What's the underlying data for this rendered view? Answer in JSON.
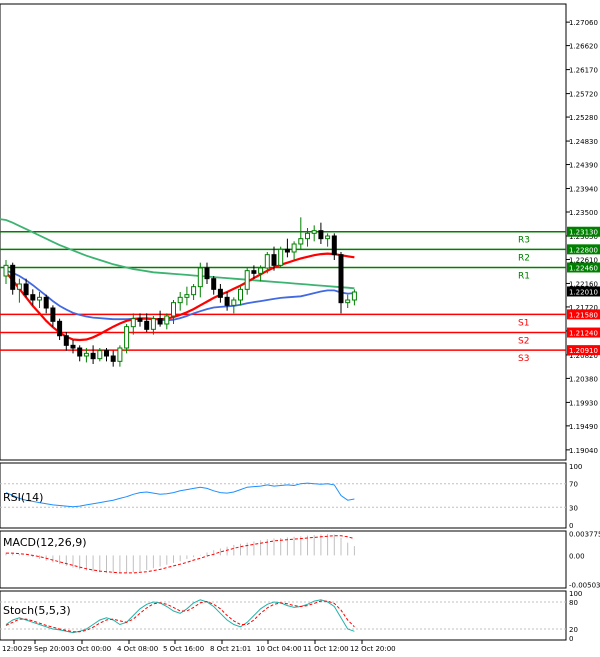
{
  "chart_data": {
    "type": "candlestick",
    "main": {
      "price_axis": [
        "1.27060",
        "1.26620",
        "1.26170",
        "1.25720",
        "1.25280",
        "1.24830",
        "1.24390",
        "1.23940",
        "1.23500",
        "1.23050",
        "1.22610",
        "1.22160",
        "1.21720",
        "1.21270",
        "1.20820",
        "1.20380",
        "1.19930",
        "1.19490",
        "1.19040"
      ],
      "ylim": [
        1.1885,
        1.274
      ],
      "levels": [
        {
          "name": "R3",
          "price": 1.2313,
          "tag": "1.23130",
          "kind": "resistance"
        },
        {
          "name": "R2",
          "price": 1.228,
          "tag": "1.22800",
          "kind": "resistance"
        },
        {
          "name": "R1",
          "price": 1.2246,
          "tag": "1.22460",
          "kind": "resistance"
        },
        {
          "name": "S1",
          "price": 1.2158,
          "tag": "1.21580",
          "kind": "support"
        },
        {
          "name": "S2",
          "price": 1.2124,
          "tag": "1.21240",
          "kind": "support"
        },
        {
          "name": "S3",
          "price": 1.2091,
          "tag": "1.20910",
          "kind": "support"
        }
      ],
      "current_price": {
        "value": 1.2201,
        "tag": "1.22010"
      },
      "candles": [
        [
          1.223,
          1.226,
          1.2215,
          1.225
        ],
        [
          1.225,
          1.2255,
          1.2195,
          1.2205
        ],
        [
          1.2205,
          1.2225,
          1.218,
          1.2215
        ],
        [
          1.2215,
          1.2225,
          1.219,
          1.2195
        ],
        [
          1.2195,
          1.2205,
          1.2175,
          1.2185
        ],
        [
          1.2185,
          1.22,
          1.217,
          1.219
        ],
        [
          1.219,
          1.2195,
          1.216,
          1.217
        ],
        [
          1.217,
          1.2175,
          1.2135,
          1.2145
        ],
        [
          1.2145,
          1.215,
          1.211,
          1.2118
        ],
        [
          1.2118,
          1.2125,
          1.209,
          1.21
        ],
        [
          1.21,
          1.211,
          1.2085,
          1.2095
        ],
        [
          1.2095,
          1.21,
          1.207,
          1.208
        ],
        [
          1.208,
          1.2095,
          1.2068,
          1.2085
        ],
        [
          1.2085,
          1.21,
          1.2065,
          1.2075
        ],
        [
          1.2075,
          1.2095,
          1.207,
          1.209
        ],
        [
          1.209,
          1.2095,
          1.207,
          1.208
        ],
        [
          1.208,
          1.209,
          1.206,
          1.207
        ],
        [
          1.207,
          1.21,
          1.206,
          1.2095
        ],
        [
          1.2095,
          1.214,
          1.2085,
          1.2135
        ],
        [
          1.2135,
          1.216,
          1.212,
          1.215
        ],
        [
          1.215,
          1.216,
          1.2135,
          1.2145
        ],
        [
          1.2145,
          1.216,
          1.2125,
          1.213
        ],
        [
          1.213,
          1.2155,
          1.212,
          1.215
        ],
        [
          1.215,
          1.2165,
          1.2135,
          1.214
        ],
        [
          1.214,
          1.216,
          1.213,
          1.2155
        ],
        [
          1.2155,
          1.2185,
          1.214,
          1.218
        ],
        [
          1.218,
          1.22,
          1.2165,
          1.219
        ],
        [
          1.219,
          1.221,
          1.2175,
          1.2195
        ],
        [
          1.2195,
          1.2215,
          1.2185,
          1.221
        ],
        [
          1.221,
          1.2255,
          1.219,
          1.2245
        ],
        [
          1.2245,
          1.2255,
          1.2215,
          1.2225
        ],
        [
          1.2225,
          1.223,
          1.2195,
          1.2205
        ],
        [
          1.2205,
          1.2215,
          1.218,
          1.219
        ],
        [
          1.219,
          1.22,
          1.2165,
          1.2175
        ],
        [
          1.2175,
          1.219,
          1.216,
          1.2185
        ],
        [
          1.2185,
          1.221,
          1.2175,
          1.2205
        ],
        [
          1.2205,
          1.2245,
          1.2195,
          1.224
        ],
        [
          1.224,
          1.225,
          1.2225,
          1.2235
        ],
        [
          1.2235,
          1.225,
          1.222,
          1.2245
        ],
        [
          1.2245,
          1.2275,
          1.2235,
          1.227
        ],
        [
          1.227,
          1.2285,
          1.224,
          1.225
        ],
        [
          1.225,
          1.2285,
          1.2245,
          1.228
        ],
        [
          1.228,
          1.23,
          1.2265,
          1.2275
        ],
        [
          1.2275,
          1.2295,
          1.226,
          1.229
        ],
        [
          1.229,
          1.234,
          1.228,
          1.23
        ],
        [
          1.23,
          1.232,
          1.2285,
          1.231
        ],
        [
          1.231,
          1.2325,
          1.2295,
          1.2315
        ],
        [
          1.2315,
          1.233,
          1.229,
          1.23
        ],
        [
          1.23,
          1.231,
          1.2285,
          1.2305
        ],
        [
          1.2305,
          1.231,
          1.226,
          1.227
        ],
        [
          1.227,
          1.2275,
          1.216,
          1.218
        ],
        [
          1.218,
          1.2195,
          1.217,
          1.2185
        ],
        [
          1.2185,
          1.2205,
          1.2175,
          1.22
        ]
      ],
      "ma_blue": [
        1.224,
        1.2236,
        1.223,
        1.2222,
        1.2213,
        1.2203,
        1.2193,
        1.2183,
        1.2174,
        1.2167,
        1.2161,
        1.2157,
        1.2154,
        1.2152,
        1.2151,
        1.215,
        1.2149,
        1.2149,
        1.2149,
        1.215,
        1.2151,
        1.2151,
        1.215,
        1.2148,
        1.2147,
        1.2148,
        1.2151,
        1.2155,
        1.216,
        1.2164,
        1.2168,
        1.2171,
        1.2172,
        1.2173,
        1.2174,
        1.2176,
        1.2179,
        1.2181,
        1.2183,
        1.2185,
        1.2187,
        1.2189,
        1.219,
        1.2191,
        1.2192,
        1.2195,
        1.2198,
        1.2201,
        1.2203,
        1.2203,
        1.2199,
        1.2197,
        1.2198
      ],
      "ma_red": [
        1.2237,
        1.2222,
        1.2206,
        1.219,
        1.2174,
        1.216,
        1.2146,
        1.2134,
        1.2124,
        1.2116,
        1.2111,
        1.211,
        1.2111,
        1.2115,
        1.2121,
        1.2128,
        1.2135,
        1.2141,
        1.2146,
        1.2149,
        1.215,
        1.215,
        1.2149,
        1.2149,
        1.215,
        1.2153,
        1.2157,
        1.2162,
        1.2168,
        1.2175,
        1.2182,
        1.2189,
        1.2195,
        1.22,
        1.2206,
        1.2212,
        1.2219,
        1.2226,
        1.2233,
        1.224,
        1.2246,
        1.2251,
        1.2255,
        1.2259,
        1.2263,
        1.2266,
        1.2269,
        1.2271,
        1.2272,
        1.2271,
        1.2269,
        1.2267,
        1.2265
      ],
      "ma_green": [
        1.2335,
        1.233,
        1.2324,
        1.2318,
        1.2312,
        1.2306,
        1.23,
        1.2294,
        1.2288,
        1.2283,
        1.2278,
        1.2273,
        1.2268,
        1.2264,
        1.226,
        1.2256,
        1.2252,
        1.2249,
        1.2246,
        1.2243,
        1.2241,
        1.2239,
        1.2237,
        1.2236,
        1.2235,
        1.2234,
        1.2233,
        1.2232,
        1.2231,
        1.223,
        1.2229,
        1.2228,
        1.2227,
        1.2226,
        1.2225,
        1.2224,
        1.2223,
        1.2222,
        1.2221,
        1.222,
        1.2219,
        1.2218,
        1.2217,
        1.2216,
        1.2215,
        1.2214,
        1.2213,
        1.2212,
        1.2211,
        1.221,
        1.2209,
        1.2208,
        1.2207
      ]
    },
    "rsi": {
      "label": "RSI(14)",
      "axis": [
        "100",
        "70",
        "30",
        "0"
      ],
      "ylim": [
        0,
        100
      ],
      "values": [
        55,
        50,
        45,
        42,
        40,
        38,
        36,
        34,
        33,
        32,
        31,
        32,
        34,
        36,
        38,
        40,
        42,
        45,
        48,
        52,
        55,
        56,
        54,
        52,
        53,
        55,
        58,
        60,
        62,
        64,
        62,
        58,
        55,
        54,
        56,
        60,
        64,
        65,
        66,
        68,
        66,
        67,
        68,
        67,
        70,
        71,
        70,
        69,
        70,
        68,
        50,
        42,
        44
      ]
    },
    "macd": {
      "label": "MACD(12,26,9)",
      "axis": [
        "0.003775",
        "0.00",
        "-0.005032"
      ],
      "ylim": [
        -0.0056,
        0.0042
      ],
      "histogram": [
        0.0005,
        0.0004,
        0.0002,
        0.0,
        -0.0003,
        -0.0006,
        -0.0009,
        -0.0012,
        -0.0015,
        -0.0018,
        -0.0021,
        -0.0024,
        -0.0026,
        -0.0028,
        -0.0029,
        -0.003,
        -0.0031,
        -0.0031,
        -0.003,
        -0.0029,
        -0.0027,
        -0.0025,
        -0.0022,
        -0.0019,
        -0.0016,
        -0.0013,
        -0.001,
        -0.0006,
        -0.0003,
        0.0001,
        0.0005,
        0.0009,
        0.0012,
        0.0015,
        0.0018,
        0.002,
        0.0022,
        0.0024,
        0.0026,
        0.0028,
        0.0029,
        0.003,
        0.0031,
        0.0032,
        0.0033,
        0.0034,
        0.0035,
        0.0036,
        0.0037,
        0.0036,
        0.003,
        0.0022,
        0.0016
      ],
      "signal": [
        0.0004,
        0.0004,
        0.0003,
        0.0002,
        0.0,
        -0.0002,
        -0.0005,
        -0.0008,
        -0.0011,
        -0.0014,
        -0.0017,
        -0.002,
        -0.0023,
        -0.0025,
        -0.0027,
        -0.0028,
        -0.0029,
        -0.003,
        -0.003,
        -0.003,
        -0.0029,
        -0.0028,
        -0.0026,
        -0.0024,
        -0.0021,
        -0.0018,
        -0.0015,
        -0.0012,
        -0.0008,
        -0.0005,
        -0.0001,
        0.0002,
        0.0006,
        0.0009,
        0.0012,
        0.0015,
        0.0017,
        0.0019,
        0.0021,
        0.0023,
        0.0025,
        0.0026,
        0.0027,
        0.0028,
        0.0029,
        0.003,
        0.0031,
        0.0032,
        0.0033,
        0.0034,
        0.0034,
        0.0032,
        0.0029
      ]
    },
    "stoch": {
      "label": "Stoch(5,5,3)",
      "axis": [
        "100",
        "80",
        "20",
        "0"
      ],
      "ylim": [
        0,
        100
      ],
      "main": [
        30,
        40,
        45,
        40,
        35,
        30,
        25,
        20,
        18,
        15,
        12,
        15,
        20,
        30,
        40,
        45,
        40,
        30,
        35,
        50,
        65,
        75,
        80,
        78,
        70,
        60,
        55,
        65,
        78,
        85,
        80,
        70,
        55,
        40,
        30,
        25,
        35,
        50,
        65,
        75,
        80,
        78,
        72,
        68,
        70,
        75,
        82,
        85,
        80,
        70,
        45,
        20,
        15
      ],
      "signal": [
        28,
        35,
        42,
        42,
        38,
        33,
        28,
        24,
        20,
        17,
        14,
        14,
        17,
        24,
        33,
        40,
        42,
        38,
        35,
        42,
        55,
        67,
        76,
        78,
        75,
        68,
        60,
        60,
        68,
        78,
        81,
        75,
        65,
        50,
        38,
        30,
        30,
        40,
        55,
        67,
        75,
        78,
        76,
        72,
        70,
        72,
        77,
        82,
        82,
        77,
        62,
        40,
        25
      ]
    },
    "time_axis": [
      "12:00",
      "29 Sep 20:00",
      "3 Oct 00:00",
      "4 Oct 08:00",
      "5 Oct 16:00",
      "8 Oct 21:01",
      "10 Oct 04:00",
      "11 Oct 12:00",
      "12 Oct 20:00"
    ],
    "colors": {
      "bull_candle": "#008000",
      "bear_candle": "#000000",
      "resistance": "#008000",
      "support": "#ff0000",
      "ma_blue": "#4169e1",
      "ma_red": "#ff0000",
      "ma_green": "#3cb371",
      "rsi_line": "#1e90ff",
      "macd_hist": "#c0c0c0",
      "macd_signal": "#ff0000",
      "stoch_main": "#20b2aa",
      "stoch_signal": "#ff0000",
      "tag_resistance_bg": "#008000",
      "tag_support_bg": "#ff0000",
      "tag_current_bg": "#000000"
    }
  }
}
